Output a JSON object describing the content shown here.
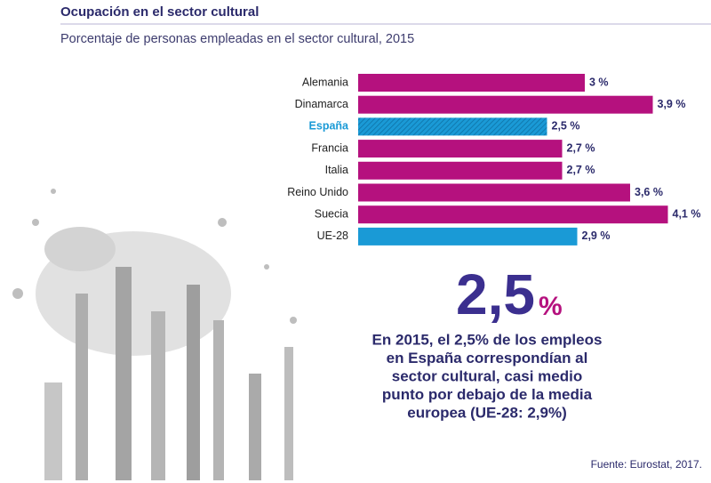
{
  "chart_data": {
    "type": "bar",
    "orientation": "horizontal",
    "title": "Ocupación en el sector cultural",
    "subtitle": "Porcentaje de personas empleadas en el sector cultural, 2015",
    "categories": [
      "Alemania",
      "Dinamarca",
      "España",
      "Francia",
      "Italia",
      "Reino Unido",
      "Suecia",
      "UE-28"
    ],
    "values": [
      3,
      3.9,
      2.5,
      2.7,
      2.7,
      3.6,
      4.1,
      2.9
    ],
    "value_labels": [
      "3 %",
      "3,9 %",
      "2,5 %",
      "2,7 %",
      "2,7 %",
      "3,6 %",
      "4,1 %",
      "2,9 %"
    ],
    "colors": [
      "#b5117e",
      "#b5117e",
      "#1a9ad6",
      "#b5117e",
      "#b5117e",
      "#b5117e",
      "#b5117e",
      "#1a9ad6"
    ],
    "hatched": [
      false,
      false,
      true,
      false,
      false,
      false,
      false,
      false
    ],
    "highlight_number": "2,5",
    "highlight_unit": "%",
    "annotation_lines": [
      "En 2015, el 2,5% de los empleos",
      "en España correspondían al",
      "sector cultural, casi medio",
      "punto por debajo de la media",
      "europea (UE-28: 2,9%)"
    ],
    "source": "Fuente: Eurostat, 2017."
  }
}
